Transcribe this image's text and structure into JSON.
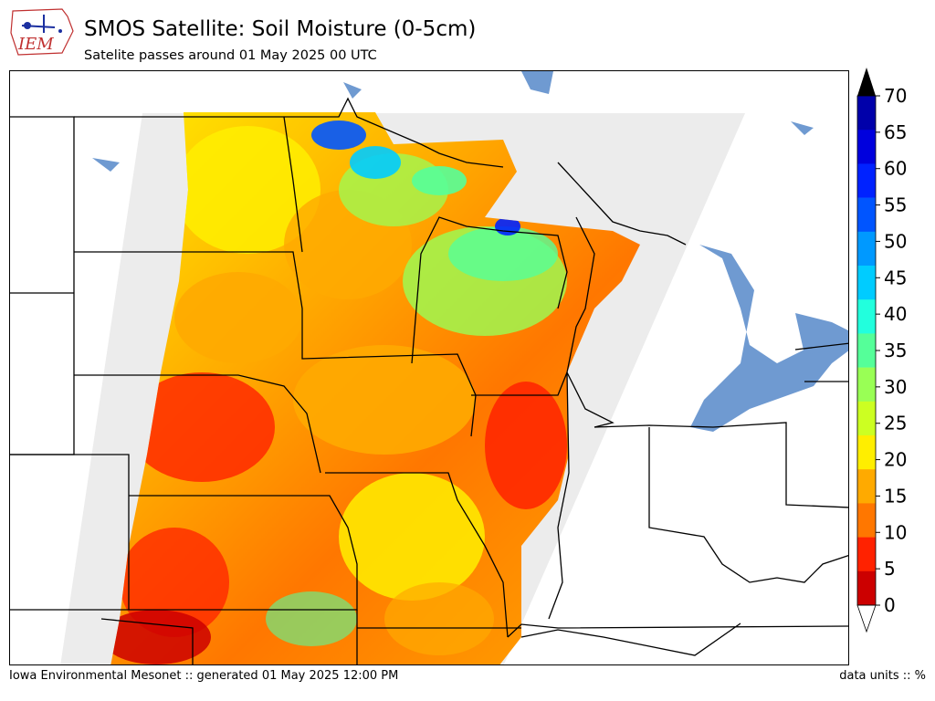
{
  "header": {
    "title": "SMOS Satellite: Soil Moisture (0-5cm)",
    "subtitle": "Satelite passes around 01 May 2025 00 UTC"
  },
  "logo": {
    "text": "IEM"
  },
  "footer": {
    "left": "Iowa Environmental Mesonet :: generated 01 May 2025 12:00 PM",
    "right": "data units :: %"
  },
  "colorbar": {
    "labels": [
      "70",
      "65",
      "60",
      "55",
      "50",
      "45",
      "40",
      "35",
      "30",
      "25",
      "20",
      "15",
      "10",
      "5",
      "0"
    ],
    "colors": [
      "#0000aa",
      "#0000dd",
      "#0022ff",
      "#0055ff",
      "#0099ff",
      "#00ccff",
      "#22ffdd",
      "#55ff99",
      "#99ff55",
      "#ccff22",
      "#ffee00",
      "#ffaa00",
      "#ff7700",
      "#ff2200",
      "#cc0000"
    ],
    "over_color": "#000000",
    "under_color": "#ffffff"
  },
  "map": {
    "lake_color": "#6f9ad1",
    "swath_color": "#ececec",
    "border_color": "#000000"
  }
}
